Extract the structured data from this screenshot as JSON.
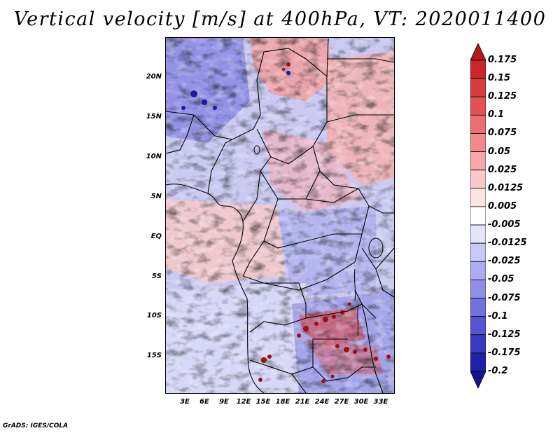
{
  "title": "Vertical velocity [m/s] at 400hPa, VT: 2020011400",
  "lat_labels": [
    "20N",
    "15N",
    "10N",
    "5N",
    "EQ",
    "5S",
    "10S",
    "15S"
  ],
  "lon_labels": [
    "3E",
    "6E",
    "9E",
    "12E",
    "15E",
    "18E",
    "21E",
    "24E",
    "27E",
    "30E",
    "33E"
  ],
  "colorbar": {
    "levels": [
      "0.175",
      "0.15",
      "0.125",
      "0.1",
      "0.075",
      "0.05",
      "0.025",
      "0.0125",
      "0.005",
      "-0.005",
      "-0.0125",
      "-0.025",
      "-0.05",
      "-0.075",
      "-0.1",
      "-0.125",
      "-0.175",
      "-0.2"
    ],
    "colors": [
      "#b51a1a",
      "#c82828",
      "#d63c3c",
      "#e35252",
      "#ec6f6f",
      "#f28a8a",
      "#f6a8a8",
      "#f9c8c8",
      "#fce4e4",
      "#ffffff",
      "#e4e4fb",
      "#c9c9f7",
      "#acacf0",
      "#8f8fe8",
      "#7272de",
      "#5555d2",
      "#3939c2",
      "#2020a8",
      "#141490"
    ]
  },
  "credit": "GrADS: IGES/COLA"
}
